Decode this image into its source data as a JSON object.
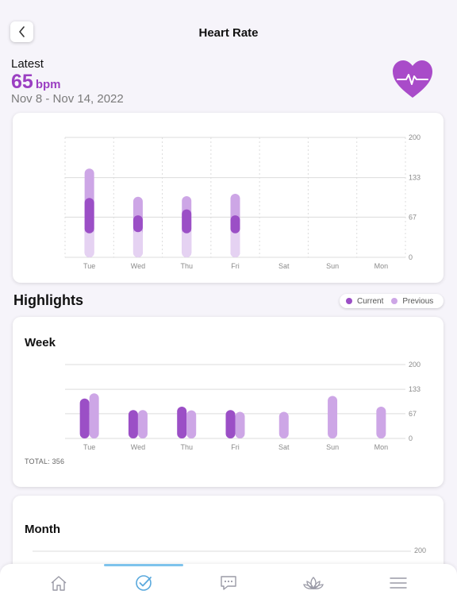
{
  "nav": {
    "title": "Heart Rate",
    "back_icon": "chevron-left-icon"
  },
  "latest": {
    "label": "Latest",
    "value": "65",
    "unit": "bpm",
    "range": "Nov 8 - Nov 14, 2022"
  },
  "colors": {
    "accent": "#9b3fc2",
    "current": "#9b4fc6",
    "previous": "#cda6e6",
    "low": "#e5d2f2",
    "heart": "#a94bc9"
  },
  "highlights": {
    "title": "Highlights",
    "legend": {
      "current": "Current",
      "previous": "Previous"
    }
  },
  "week": {
    "title": "Week",
    "total_label": "TOTAL: 356"
  },
  "month": {
    "title": "Month"
  },
  "tabs": [
    {
      "icon": "home-icon"
    },
    {
      "icon": "check-circle-icon",
      "active": true
    },
    {
      "icon": "chat-icon"
    },
    {
      "icon": "lotus-icon"
    },
    {
      "icon": "menu-icon"
    }
  ],
  "chart_data": [
    {
      "type": "bar",
      "subtype": "range",
      "categories": [
        "Tue",
        "Wed",
        "Thu",
        "Fri",
        "Sat",
        "Sun",
        "Mon"
      ],
      "yticks": [
        0,
        67,
        133,
        200
      ],
      "ylim": [
        0,
        200
      ],
      "grid": true,
      "series": [
        {
          "name": "Previous",
          "ranges": [
            [
              0,
              148
            ],
            [
              0,
              101
            ],
            [
              0,
              102
            ],
            [
              0,
              106
            ],
            null,
            null,
            null
          ]
        },
        {
          "name": "Current",
          "ranges": [
            [
              40,
              99
            ],
            [
              42,
              70
            ],
            [
              40,
              80
            ],
            [
              40,
              70
            ],
            null,
            null,
            null
          ]
        }
      ],
      "low_segments": [
        [
          0,
          47
        ],
        [
          0,
          47
        ],
        [
          0,
          47
        ],
        [
          0,
          52
        ],
        null,
        null,
        null
      ]
    },
    {
      "type": "bar",
      "subtype": "range",
      "categories": [
        "Tue",
        "Wed",
        "Thu",
        "Fri",
        "Sat",
        "Sun",
        "Mon"
      ],
      "yticks": [
        0,
        67,
        133,
        200
      ],
      "ylim": [
        0,
        200
      ],
      "grid": true,
      "series": [
        {
          "name": "Current",
          "ranges": [
            [
              0,
              108
            ],
            [
              0,
              77
            ],
            [
              0,
              86
            ],
            [
              0,
              77
            ],
            null,
            null,
            null
          ]
        },
        {
          "name": "Previous",
          "ranges": [
            [
              0,
              122
            ],
            [
              0,
              77
            ],
            [
              0,
              76
            ],
            [
              0,
              72
            ],
            [
              0,
              72
            ],
            [
              0,
              115
            ],
            [
              0,
              86
            ]
          ]
        }
      ]
    },
    {
      "type": "bar",
      "categories": [],
      "yticks": [
        200
      ],
      "grid": true,
      "series": []
    }
  ]
}
